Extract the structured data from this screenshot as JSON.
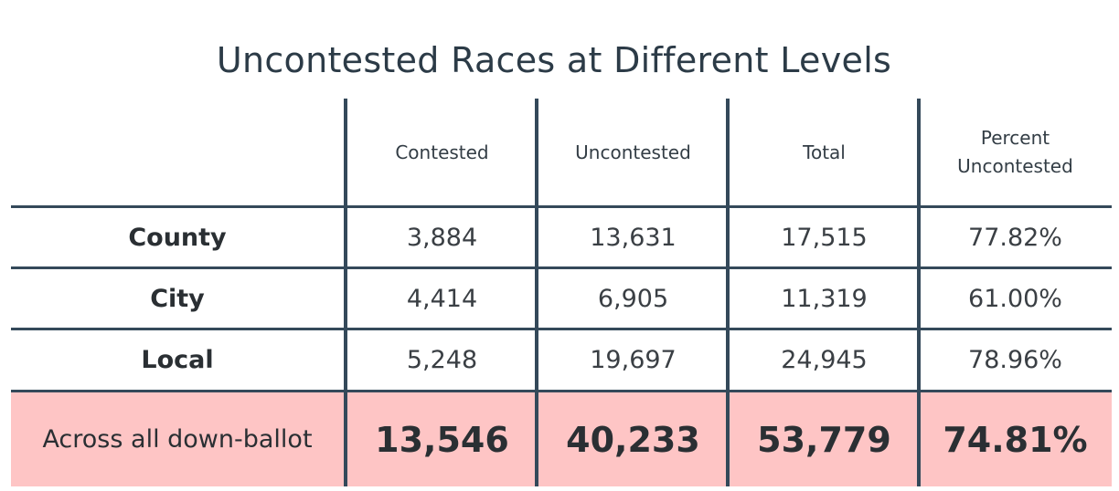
{
  "chart_data": {
    "type": "table",
    "title": "Uncontested Races at Different Levels",
    "columns": [
      "",
      "Contested",
      "Uncontested",
      "Total",
      "Percent Uncontested"
    ],
    "rows": [
      {
        "label": "County",
        "contested": "3,884",
        "uncontested": "13,631",
        "total": "17,515",
        "percent": "77.82%"
      },
      {
        "label": "City",
        "contested": "4,414",
        "uncontested": "6,905",
        "total": "11,319",
        "percent": "61.00%"
      },
      {
        "label": "Local",
        "contested": "5,248",
        "uncontested": "19,697",
        "total": "24,945",
        "percent": "78.96%"
      }
    ],
    "total_row": {
      "label": "Across all down-ballot",
      "contested": "13,546",
      "uncontested": "40,233",
      "total": "53,779",
      "percent": "74.81%"
    },
    "colors": {
      "lines": "#34495a",
      "total_row_background": "#fec5c5",
      "title": "#2c3b47"
    }
  }
}
